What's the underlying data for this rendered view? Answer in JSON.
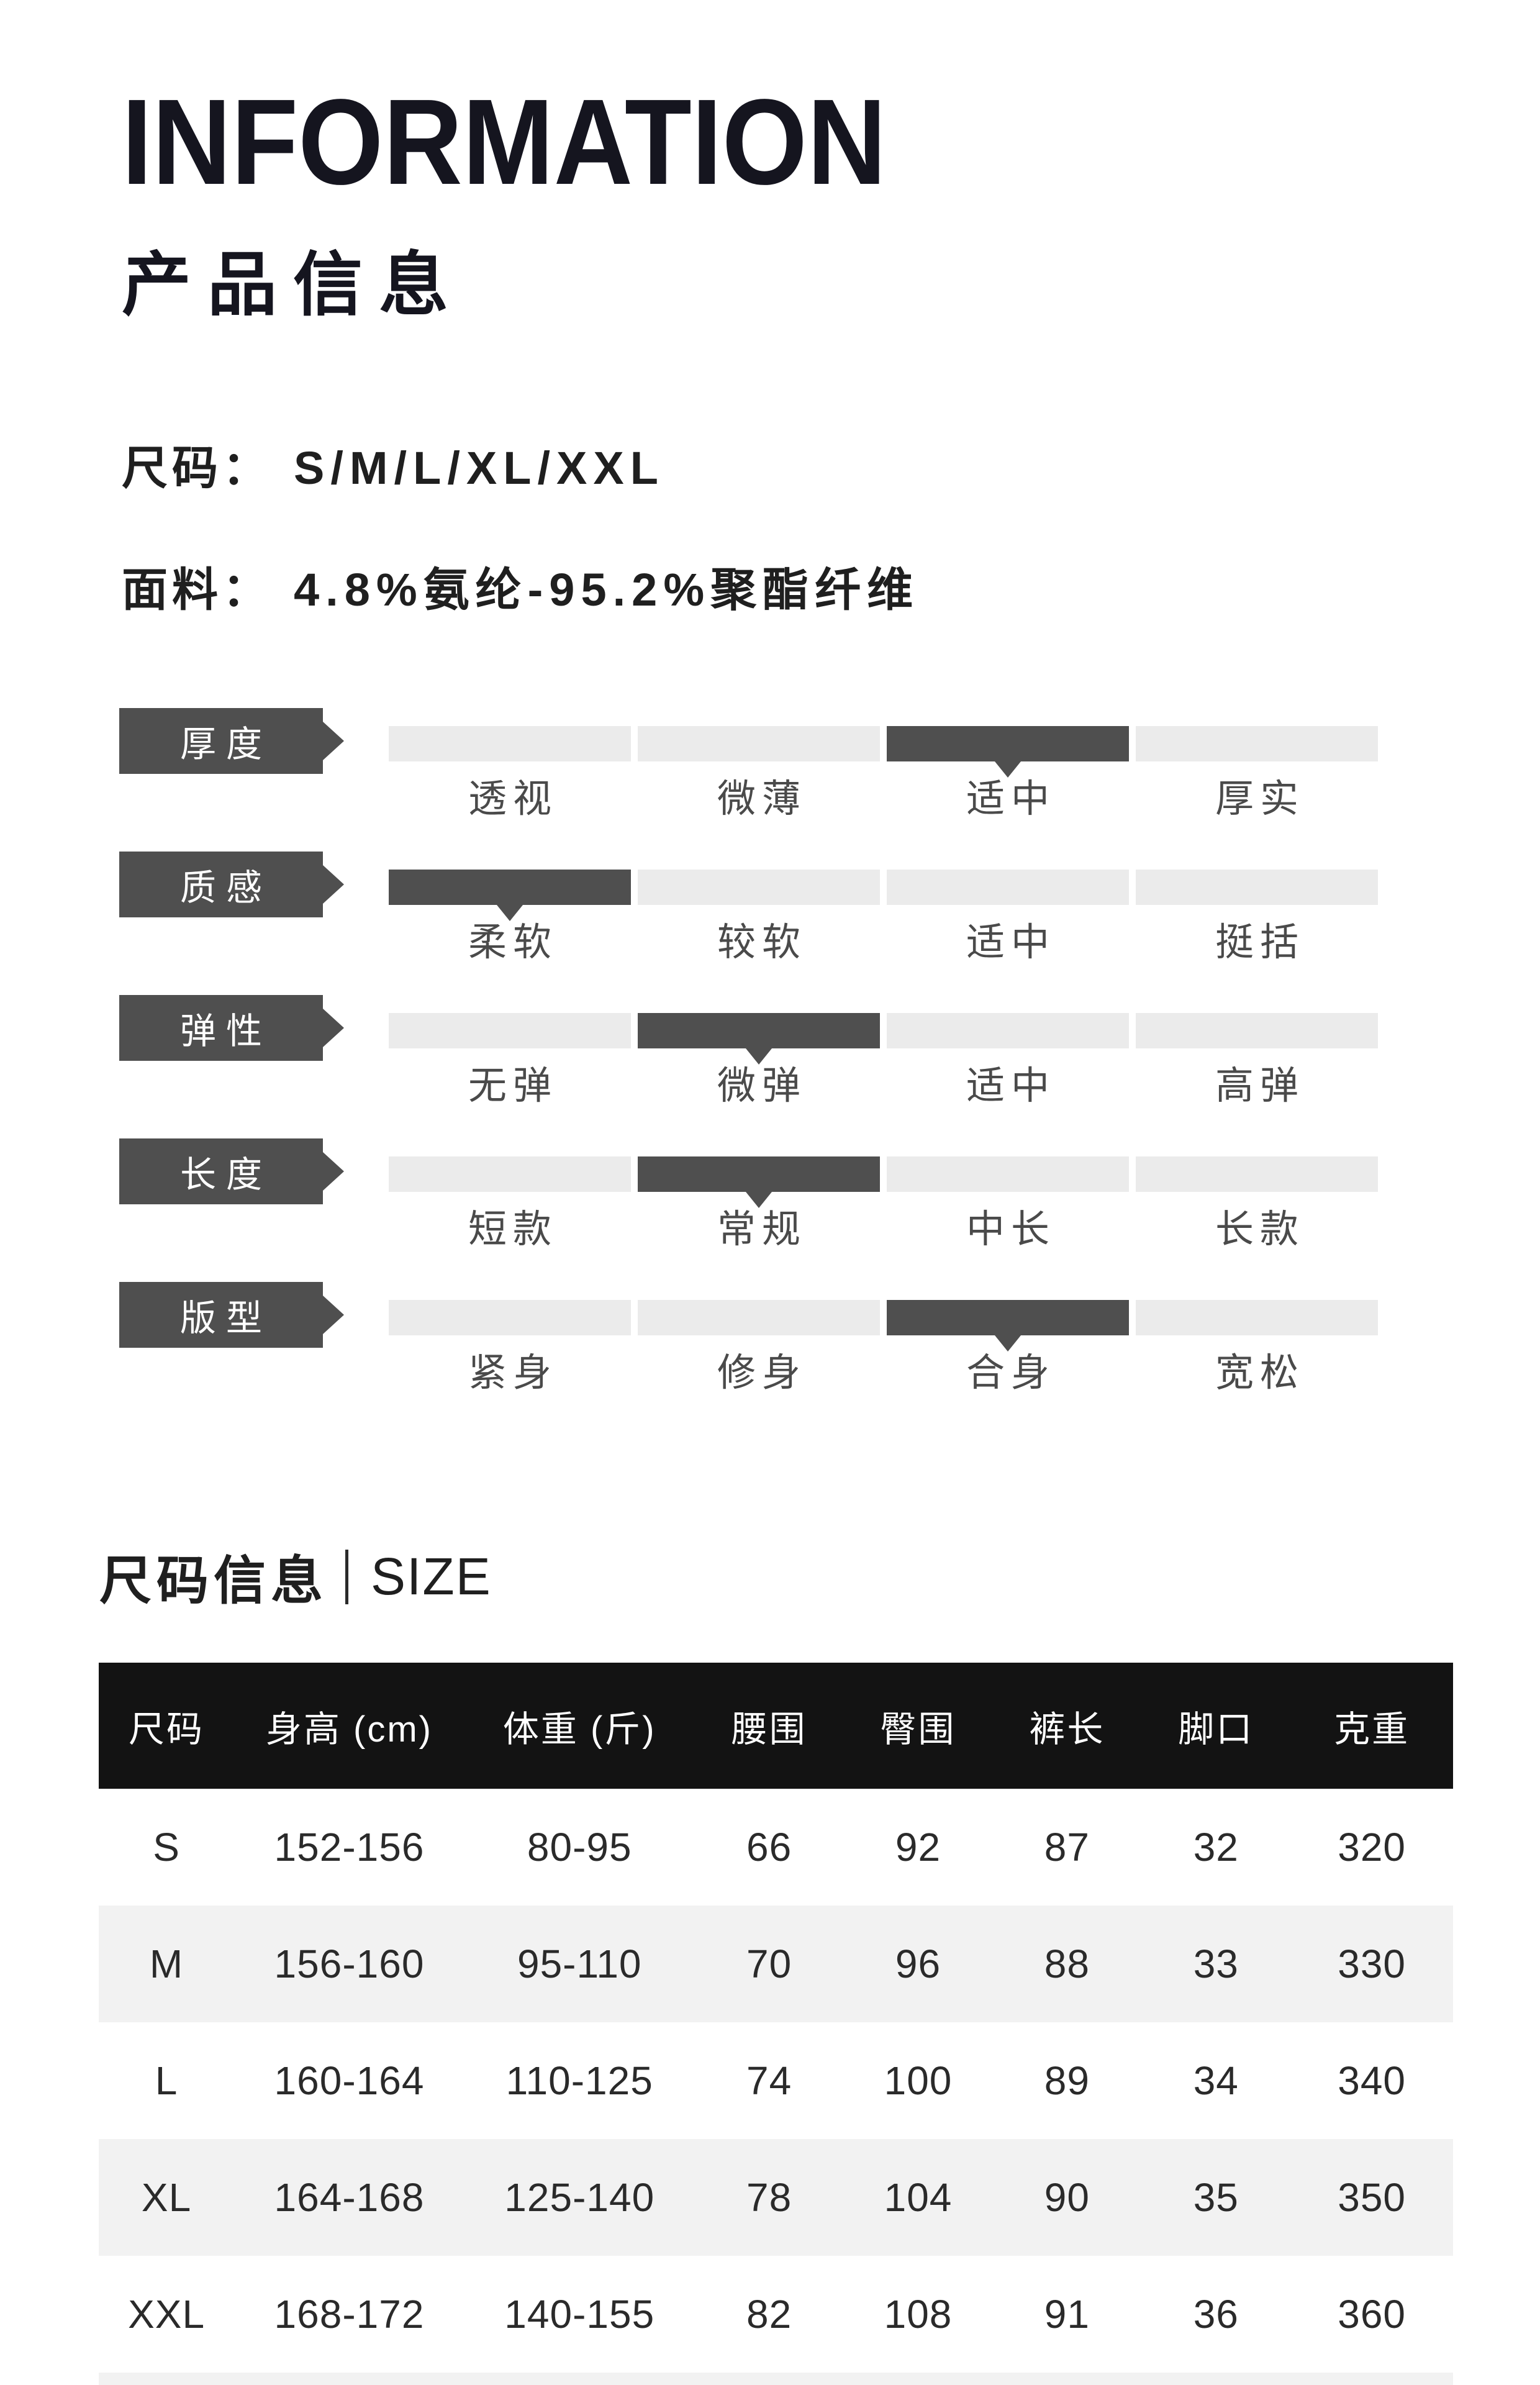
{
  "header": {
    "title": "INFORMATION",
    "subtitle": "产品信息"
  },
  "specs": {
    "size_label": "尺码：",
    "size_value": "S/M/L/XL/XXL",
    "fabric_label": "面料：",
    "fabric_value": "4.8%氨纶-95.2%聚酯纤维"
  },
  "attributes": {
    "rows": [
      {
        "label": "厚度",
        "options": [
          "透视",
          "微薄",
          "适中",
          "厚实"
        ],
        "active_index": 2,
        "active_option": "适中"
      },
      {
        "label": "质感",
        "options": [
          "柔软",
          "较软",
          "适中",
          "挺括"
        ],
        "active_index": 0,
        "active_option": "柔软"
      },
      {
        "label": "弹性",
        "options": [
          "无弹",
          "微弹",
          "适中",
          "高弹"
        ],
        "active_index": 1,
        "active_option": "微弹"
      },
      {
        "label": "长度",
        "options": [
          "短款",
          "常规",
          "中长",
          "长款"
        ],
        "active_index": 1,
        "active_option": "常规"
      },
      {
        "label": "版型",
        "options": [
          "紧身",
          "修身",
          "合身",
          "宽松"
        ],
        "active_index": 2,
        "active_option": "合身"
      }
    ]
  },
  "size_section": {
    "heading_cn": "尺码信息",
    "heading_en": "SIZE"
  },
  "size_table": {
    "columns": [
      "尺码",
      "身高 (cm)",
      "体重 (斤)",
      "腰围",
      "臀围",
      "裤长",
      "脚口",
      "克重"
    ],
    "col_widths_pct": [
      10,
      17,
      17,
      11,
      11,
      11,
      11,
      12
    ],
    "rows": [
      [
        "S",
        "152-156",
        "80-95",
        "66",
        "92",
        "87",
        "32",
        "320"
      ],
      [
        "M",
        "156-160",
        "95-110",
        "70",
        "96",
        "88",
        "33",
        "330"
      ],
      [
        "L",
        "160-164",
        "110-125",
        "74",
        "100",
        "89",
        "34",
        "340"
      ],
      [
        "XL",
        "164-168",
        "125-140",
        "78",
        "104",
        "90",
        "35",
        "350"
      ],
      [
        "XXL",
        "168-172",
        "140-155",
        "82",
        "108",
        "91",
        "36",
        "360"
      ]
    ]
  },
  "colors": {
    "title_color": "#15151f",
    "text_dark": "#1f1f1f",
    "accent_dark": "#4f4f4f",
    "segment_inactive": "#ebebeb",
    "option_text": "#4a4a4a",
    "table_header_bg": "#131313",
    "row_alt_bg": "#f2f2f2",
    "cell_text": "#2a2a2a"
  }
}
